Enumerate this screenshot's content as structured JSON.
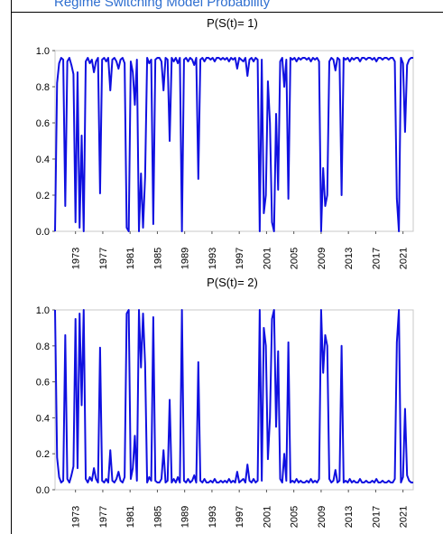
{
  "page": {
    "cropped_caption": "Regime Switching Model Probability"
  },
  "chart_data": [
    {
      "type": "line",
      "title": "P(S(t)= 1)",
      "xlabel": "",
      "ylabel": "",
      "ylim": [
        0.0,
        1.0
      ],
      "xlim": [
        1970,
        2022.5
      ],
      "yticks": [
        0.0,
        0.2,
        0.4,
        0.6,
        0.8,
        1.0
      ],
      "ytick_labels": [
        "0.0",
        "0.2",
        "0.4",
        "0.6",
        "0.8",
        "1.0"
      ],
      "xticks": [
        "1973",
        "1977",
        "1981",
        "1985",
        "1989",
        "1993",
        "1997",
        "2001",
        "2005",
        "2009",
        "2013",
        "2017",
        "2021"
      ],
      "grid": false,
      "color": "#1010e0",
      "series": [
        {
          "x": [
            1970.0,
            1970.3,
            1970.6,
            1970.9,
            1971.2,
            1971.5,
            1971.8,
            1972.1,
            1972.4,
            1972.7,
            1973.0,
            1973.3,
            1973.6,
            1973.9,
            1974.2,
            1974.5,
            1974.8,
            1975.1,
            1975.4,
            1975.7,
            1976.0,
            1976.3,
            1976.6,
            1976.9,
            1977.2,
            1977.5,
            1977.8,
            1978.1,
            1978.4,
            1978.7,
            1979.0,
            1979.3,
            1979.6,
            1979.9,
            1980.2,
            1980.5,
            1980.8,
            1981.1,
            1981.4,
            1981.7,
            1982.0,
            1982.3,
            1982.6,
            1982.9,
            1983.2,
            1983.5,
            1983.8,
            1984.1,
            1984.4,
            1984.7,
            1985.0,
            1985.3,
            1985.6,
            1985.9,
            1986.2,
            1986.5,
            1986.8,
            1987.1,
            1987.4,
            1987.7,
            1988.0,
            1988.3,
            1988.6,
            1988.9,
            1989.2,
            1989.5,
            1989.8,
            1990.1,
            1990.4,
            1990.7,
            1991.0,
            1991.3,
            1991.6,
            1991.9,
            1992.2,
            1992.5,
            1992.8,
            1993.1,
            1993.4,
            1993.7,
            1994.0,
            1994.3,
            1994.6,
            1994.9,
            1995.2,
            1995.5,
            1995.8,
            1996.1,
            1996.4,
            1996.7,
            1997.0,
            1997.3,
            1997.6,
            1997.9,
            1998.2,
            1998.5,
            1998.8,
            1999.1,
            1999.4,
            1999.7,
            2000.0,
            2000.3,
            2000.6,
            2000.9,
            2001.2,
            2001.5,
            2001.8,
            2002.1,
            2002.4,
            2002.7,
            2003.0,
            2003.3,
            2003.6,
            2003.9,
            2004.2,
            2004.5,
            2004.8,
            2005.1,
            2005.4,
            2005.7,
            2006.0,
            2006.3,
            2006.6,
            2006.9,
            2007.2,
            2007.5,
            2007.8,
            2008.1,
            2008.4,
            2008.7,
            2009.0,
            2009.3,
            2009.6,
            2009.9,
            2010.2,
            2010.5,
            2010.8,
            2011.1,
            2011.4,
            2011.7,
            2012.0,
            2012.3,
            2012.6,
            2012.9,
            2013.2,
            2013.5,
            2013.8,
            2014.1,
            2014.4,
            2014.7,
            2015.0,
            2015.3,
            2015.6,
            2015.9,
            2016.2,
            2016.5,
            2016.8,
            2017.1,
            2017.4,
            2017.7,
            2018.0,
            2018.3,
            2018.6,
            2018.9,
            2019.2,
            2019.5,
            2019.8,
            2020.1,
            2020.4,
            2020.7,
            2021.0,
            2021.3,
            2021.6,
            2021.9,
            2022.2,
            2022.5
          ],
          "y": [
            0.0,
            0.82,
            0.93,
            0.96,
            0.95,
            0.14,
            0.94,
            0.96,
            0.92,
            0.87,
            0.05,
            0.88,
            0.02,
            0.53,
            0.0,
            0.94,
            0.96,
            0.93,
            0.95,
            0.88,
            0.94,
            0.96,
            0.21,
            0.95,
            0.96,
            0.94,
            0.96,
            0.78,
            0.95,
            0.96,
            0.94,
            0.9,
            0.95,
            0.96,
            0.93,
            0.02,
            0.0,
            0.94,
            0.88,
            0.7,
            0.95,
            0.0,
            0.32,
            0.02,
            0.3,
            0.96,
            0.93,
            0.95,
            0.04,
            0.95,
            0.96,
            0.96,
            0.94,
            0.78,
            0.96,
            0.95,
            0.5,
            0.96,
            0.94,
            0.96,
            0.93,
            0.96,
            0.0,
            0.95,
            0.96,
            0.94,
            0.96,
            0.95,
            0.92,
            0.96,
            0.29,
            0.95,
            0.96,
            0.94,
            0.96,
            0.96,
            0.95,
            0.96,
            0.94,
            0.96,
            0.96,
            0.95,
            0.96,
            0.95,
            0.96,
            0.94,
            0.96,
            0.95,
            0.96,
            0.9,
            0.96,
            0.95,
            0.94,
            0.96,
            0.86,
            0.95,
            0.96,
            0.94,
            0.96,
            0.95,
            0.0,
            0.95,
            0.1,
            0.2,
            0.83,
            0.6,
            0.05,
            0.0,
            0.65,
            0.23,
            0.94,
            0.96,
            0.8,
            0.95,
            0.18,
            0.96,
            0.95,
            0.96,
            0.94,
            0.96,
            0.95,
            0.96,
            0.96,
            0.95,
            0.96,
            0.94,
            0.96,
            0.95,
            0.96,
            0.94,
            0.0,
            0.35,
            0.14,
            0.2,
            0.94,
            0.96,
            0.95,
            0.89,
            0.96,
            0.95,
            0.2,
            0.96,
            0.95,
            0.96,
            0.94,
            0.96,
            0.95,
            0.96,
            0.96,
            0.94,
            0.96,
            0.96,
            0.95,
            0.96,
            0.96,
            0.95,
            0.96,
            0.94,
            0.96,
            0.96,
            0.95,
            0.96,
            0.96,
            0.95,
            0.96,
            0.96,
            0.94,
            0.18,
            0.0,
            0.96,
            0.93,
            0.55,
            0.92,
            0.95,
            0.96,
            0.96
          ]
        }
      ]
    },
    {
      "type": "line",
      "title": "P(S(t)= 2)",
      "xlabel": "",
      "ylabel": "",
      "ylim": [
        0.0,
        1.0
      ],
      "xlim": [
        1970,
        2022.5
      ],
      "yticks": [
        0.0,
        0.2,
        0.4,
        0.6,
        0.8,
        1.0
      ],
      "ytick_labels": [
        "0.0",
        "0.2",
        "0.4",
        "0.6",
        "0.8",
        "1.0"
      ],
      "xticks": [
        "1973",
        "1977",
        "1981",
        "1985",
        "1989",
        "1993",
        "1997",
        "2001",
        "2005",
        "2009",
        "2013",
        "2017",
        "2021"
      ],
      "grid": false,
      "color": "#1010e0",
      "series": [
        {
          "x": [
            1970.0,
            1970.3,
            1970.6,
            1970.9,
            1971.2,
            1971.5,
            1971.8,
            1972.1,
            1972.4,
            1972.7,
            1973.0,
            1973.3,
            1973.6,
            1973.9,
            1974.2,
            1974.5,
            1974.8,
            1975.1,
            1975.4,
            1975.7,
            1976.0,
            1976.3,
            1976.6,
            1976.9,
            1977.2,
            1977.5,
            1977.8,
            1978.1,
            1978.4,
            1978.7,
            1979.0,
            1979.3,
            1979.6,
            1979.9,
            1980.2,
            1980.5,
            1980.8,
            1981.1,
            1981.4,
            1981.7,
            1982.0,
            1982.3,
            1982.6,
            1982.9,
            1983.2,
            1983.5,
            1983.8,
            1984.1,
            1984.4,
            1984.7,
            1985.0,
            1985.3,
            1985.6,
            1985.9,
            1986.2,
            1986.5,
            1986.8,
            1987.1,
            1987.4,
            1987.7,
            1988.0,
            1988.3,
            1988.6,
            1988.9,
            1989.2,
            1989.5,
            1989.8,
            1990.1,
            1990.4,
            1990.7,
            1991.0,
            1991.3,
            1991.6,
            1991.9,
            1992.2,
            1992.5,
            1992.8,
            1993.1,
            1993.4,
            1993.7,
            1994.0,
            1994.3,
            1994.6,
            1994.9,
            1995.2,
            1995.5,
            1995.8,
            1996.1,
            1996.4,
            1996.7,
            1997.0,
            1997.3,
            1997.6,
            1997.9,
            1998.2,
            1998.5,
            1998.8,
            1999.1,
            1999.4,
            1999.7,
            2000.0,
            2000.3,
            2000.6,
            2000.9,
            2001.2,
            2001.5,
            2001.8,
            2002.1,
            2002.4,
            2002.7,
            2003.0,
            2003.3,
            2003.6,
            2003.9,
            2004.2,
            2004.5,
            2004.8,
            2005.1,
            2005.4,
            2005.7,
            2006.0,
            2006.3,
            2006.6,
            2006.9,
            2007.2,
            2007.5,
            2007.8,
            2008.1,
            2008.4,
            2008.7,
            2009.0,
            2009.3,
            2009.6,
            2009.9,
            2010.2,
            2010.5,
            2010.8,
            2011.1,
            2011.4,
            2011.7,
            2012.0,
            2012.3,
            2012.6,
            2012.9,
            2013.2,
            2013.5,
            2013.8,
            2014.1,
            2014.4,
            2014.7,
            2015.0,
            2015.3,
            2015.6,
            2015.9,
            2016.2,
            2016.5,
            2016.8,
            2017.1,
            2017.4,
            2017.7,
            2018.0,
            2018.3,
            2018.6,
            2018.9,
            2019.2,
            2019.5,
            2019.8,
            2020.1,
            2020.4,
            2020.7,
            2021.0,
            2021.3,
            2021.6,
            2021.9,
            2022.2,
            2022.5
          ],
          "y": [
            1.0,
            0.18,
            0.07,
            0.04,
            0.05,
            0.86,
            0.06,
            0.04,
            0.08,
            0.13,
            0.95,
            0.12,
            0.98,
            0.47,
            1.0,
            0.06,
            0.04,
            0.07,
            0.05,
            0.12,
            0.06,
            0.04,
            0.79,
            0.05,
            0.04,
            0.06,
            0.04,
            0.22,
            0.05,
            0.04,
            0.06,
            0.1,
            0.05,
            0.04,
            0.07,
            0.98,
            1.0,
            0.06,
            0.12,
            0.3,
            0.05,
            1.0,
            0.68,
            0.98,
            0.7,
            0.04,
            0.07,
            0.05,
            0.96,
            0.05,
            0.04,
            0.04,
            0.06,
            0.22,
            0.04,
            0.05,
            0.5,
            0.04,
            0.06,
            0.04,
            0.07,
            0.04,
            1.0,
            0.05,
            0.04,
            0.06,
            0.04,
            0.05,
            0.08,
            0.04,
            0.71,
            0.05,
            0.04,
            0.06,
            0.04,
            0.04,
            0.05,
            0.04,
            0.06,
            0.04,
            0.04,
            0.05,
            0.04,
            0.05,
            0.04,
            0.06,
            0.04,
            0.05,
            0.04,
            0.1,
            0.04,
            0.05,
            0.06,
            0.04,
            0.14,
            0.05,
            0.04,
            0.06,
            0.04,
            0.05,
            1.0,
            0.05,
            0.9,
            0.8,
            0.17,
            0.4,
            0.95,
            1.0,
            0.35,
            0.77,
            0.06,
            0.04,
            0.2,
            0.05,
            0.82,
            0.04,
            0.05,
            0.04,
            0.06,
            0.04,
            0.05,
            0.04,
            0.04,
            0.05,
            0.04,
            0.06,
            0.04,
            0.05,
            0.04,
            0.06,
            1.0,
            0.65,
            0.86,
            0.8,
            0.06,
            0.04,
            0.05,
            0.11,
            0.04,
            0.05,
            0.8,
            0.04,
            0.05,
            0.04,
            0.06,
            0.04,
            0.05,
            0.04,
            0.04,
            0.06,
            0.04,
            0.04,
            0.05,
            0.04,
            0.04,
            0.05,
            0.04,
            0.06,
            0.04,
            0.04,
            0.05,
            0.04,
            0.04,
            0.05,
            0.04,
            0.04,
            0.06,
            0.82,
            1.0,
            0.04,
            0.07,
            0.45,
            0.08,
            0.05,
            0.04,
            0.04
          ]
        }
      ]
    }
  ]
}
